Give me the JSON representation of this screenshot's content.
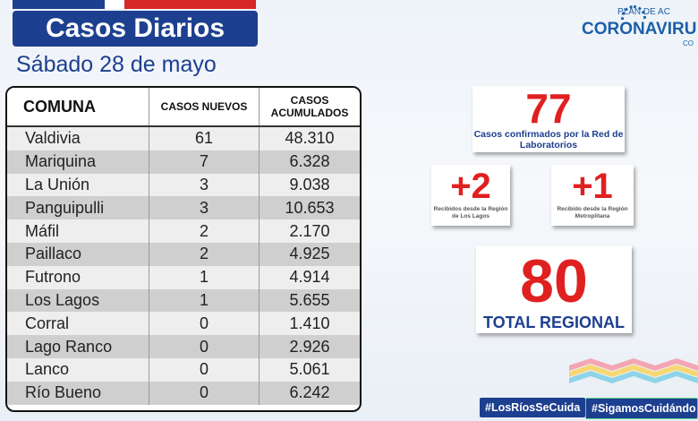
{
  "header": {
    "title": "Casos Diarios",
    "date": "Sábado 28 de mayo"
  },
  "table": {
    "columns": [
      "COMUNA",
      "CASOS NUEVOS",
      "CASOS ACUMULADOS"
    ],
    "rows": [
      {
        "comuna": "Valdivia",
        "nuevos": "61",
        "acumulados": "48.310"
      },
      {
        "comuna": "Mariquina",
        "nuevos": "7",
        "acumulados": "6.328"
      },
      {
        "comuna": "La Unión",
        "nuevos": "3",
        "acumulados": "9.038"
      },
      {
        "comuna": "Panguipulli",
        "nuevos": "3",
        "acumulados": "10.653"
      },
      {
        "comuna": "Máfil",
        "nuevos": "2",
        "acumulados": "2.170"
      },
      {
        "comuna": "Paillaco",
        "nuevos": "2",
        "acumulados": "4.925"
      },
      {
        "comuna": "Futrono",
        "nuevos": "1",
        "acumulados": "4.914"
      },
      {
        "comuna": "Los Lagos",
        "nuevos": "1",
        "acumulados": "5.655"
      },
      {
        "comuna": "Corral",
        "nuevos": "0",
        "acumulados": "1.410"
      },
      {
        "comuna": "Lago Ranco",
        "nuevos": "0",
        "acumulados": "2.926"
      },
      {
        "comuna": "Lanco",
        "nuevos": "0",
        "acumulados": "5.061"
      },
      {
        "comuna": "Río Bueno",
        "nuevos": "0",
        "acumulados": "6.242"
      }
    ]
  },
  "stats": {
    "confirmados": {
      "value": "77",
      "caption": "Casos confirmados  por la Red de Laboratorios"
    },
    "recibidos_lagos": {
      "value": "+2",
      "caption": "Recibidos  desde la Región de Los Lagos"
    },
    "recibidos_metro": {
      "value": "+1",
      "caption": "Recibido desde la Región Metroplitana"
    },
    "total": {
      "value": "80",
      "caption": "TOTAL REGIONAL"
    }
  },
  "logo": {
    "plan": "PLAN DE AC",
    "name": "CORONAVIRU",
    "suffix": "CO"
  },
  "hashtags": [
    "#LosRíosSeCuida",
    "#SigamosCuidándo"
  ],
  "colors": {
    "brand_blue": "#1d3f8f",
    "accent_red": "#e02020"
  }
}
